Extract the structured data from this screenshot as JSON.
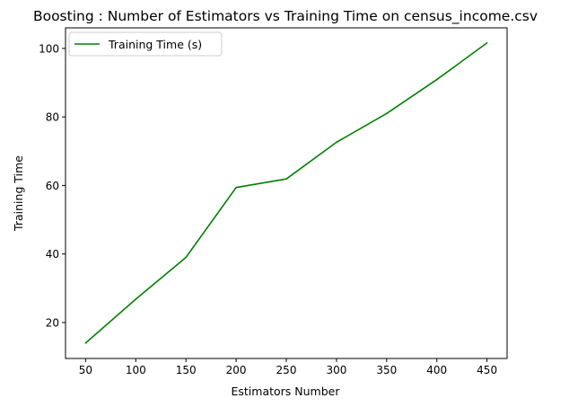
{
  "chart_data": {
    "type": "line",
    "title": "Boosting : Number of Estimators vs Training Time on census_income.csv",
    "xlabel": "Estimators Number",
    "ylabel": "Training Time",
    "xlim": [
      30,
      470
    ],
    "ylim": [
      9.5,
      106
    ],
    "xticks": [
      50,
      100,
      150,
      200,
      250,
      300,
      350,
      400,
      450
    ],
    "yticks": [
      20,
      40,
      60,
      80,
      100
    ],
    "grid": false,
    "legend_position": "upper-left",
    "series": [
      {
        "name": "Training Time (s)",
        "color": "#008000",
        "x": [
          50,
          100,
          150,
          200,
          250,
          300,
          350,
          400,
          450
        ],
        "y": [
          14.0,
          26.8,
          39.0,
          59.4,
          61.9,
          72.6,
          81.0,
          90.9,
          101.6
        ]
      }
    ]
  }
}
